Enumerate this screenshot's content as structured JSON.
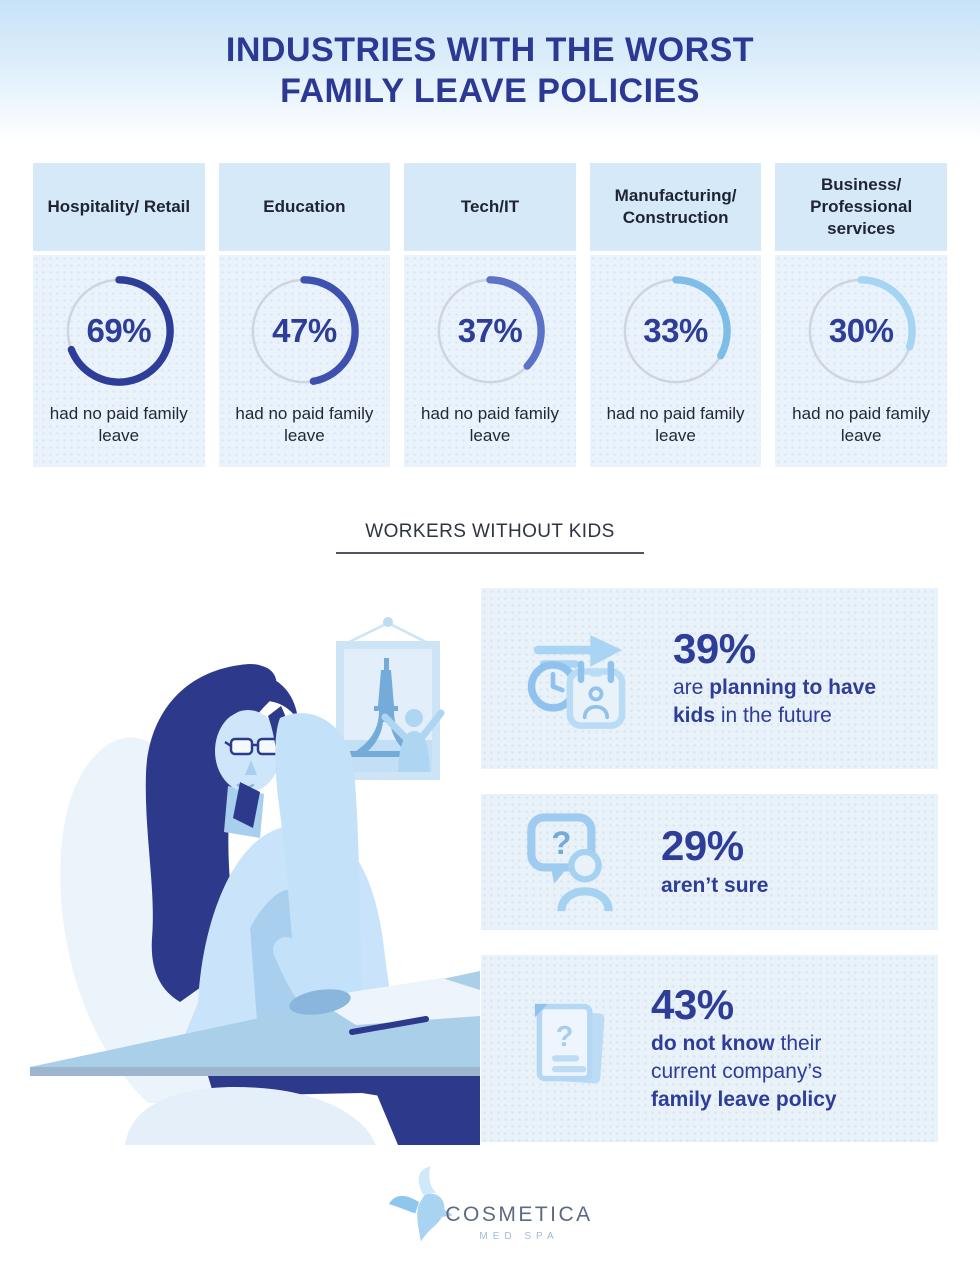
{
  "title": {
    "line1": "INDUSTRIES WITH THE WORST",
    "line2": "FAMILY LEAVE POLICIES"
  },
  "cards": [
    {
      "industry": "Hospitality/ Retail",
      "percent": 69,
      "percent_label": "69%",
      "caption": "had no paid family leave",
      "ring_color": "#2e3d98"
    },
    {
      "industry": "Education",
      "percent": 47,
      "percent_label": "47%",
      "caption": "had no paid family leave",
      "ring_color": "#3f51ae"
    },
    {
      "industry": "Tech/IT",
      "percent": 37,
      "percent_label": "37%",
      "caption": "had no paid family leave",
      "ring_color": "#5c72c8"
    },
    {
      "industry": "Manufacturing/ Construction",
      "percent": 33,
      "percent_label": "33%",
      "caption": "had no paid family leave",
      "ring_color": "#7fbde9"
    },
    {
      "industry": "Business/ Professional services",
      "percent": 30,
      "percent_label": "30%",
      "caption": "had no paid family leave",
      "ring_color": "#a6d5f4"
    }
  ],
  "section": {
    "title": "WORKERS WITHOUT KIDS"
  },
  "stats": [
    {
      "percent_label": "39%",
      "icon": "calendar-clock-arrow-icon",
      "lines": [
        [
          {
            "t": "are ",
            "b": false
          },
          {
            "t": "planning to have",
            "b": true
          }
        ],
        [
          {
            "t": "kids",
            "b": true
          },
          {
            "t": " in the future",
            "b": false
          }
        ]
      ]
    },
    {
      "percent_label": "29%",
      "icon": "question-bubble-person-icon",
      "lines": [
        [
          {
            "t": "aren’t sure",
            "b": true
          }
        ]
      ]
    },
    {
      "percent_label": "43%",
      "icon": "documents-question-icon",
      "lines": [
        [
          {
            "t": "do not know",
            "b": true
          },
          {
            "t": " their",
            "b": false
          }
        ],
        [
          {
            "t": "current company’s",
            "b": false
          }
        ],
        [
          {
            "t": "family leave policy",
            "b": true
          }
        ]
      ]
    }
  ],
  "logo": {
    "name": "COSMETICA",
    "sub": "MED SPA"
  },
  "palette": {
    "navy": "#2e3d98",
    "title_navy": "#2b3894",
    "card_header_bg": "#d6e9f9",
    "card_body_bg": "#eaf3fb",
    "stat_box_bg": "#e9f1f9",
    "ring_track": "#cfd5de",
    "dark_text": "#222838",
    "illustration_navy": "#2d3a8c",
    "illustration_light_blue": "#c9e4fa",
    "illustration_mid_blue": "#8ab6de",
    "desk_blue": "#a9cfe9"
  },
  "chart_data": [
    {
      "type": "pie",
      "variant": "donut-percentage-set",
      "title": "Industries with the worst family leave policies",
      "categories": [
        "Hospitality/Retail",
        "Education",
        "Tech/IT",
        "Manufacturing/Construction",
        "Business/Professional services"
      ],
      "values": [
        69,
        47,
        37,
        33,
        30
      ],
      "unit": "%",
      "annotation": "had no paid family leave",
      "colors": [
        "#2e3d98",
        "#3f51ae",
        "#5c72c8",
        "#7fbde9",
        "#a6d5f4"
      ],
      "legend_position": "none",
      "grid": false
    },
    {
      "type": "bar",
      "variant": "icon-stat-list",
      "title": "Workers without kids",
      "categories": [
        "are planning to have kids in the future",
        "aren't sure",
        "do not know their current company's family leave policy"
      ],
      "values": [
        39,
        29,
        43
      ],
      "unit": "%"
    }
  ]
}
